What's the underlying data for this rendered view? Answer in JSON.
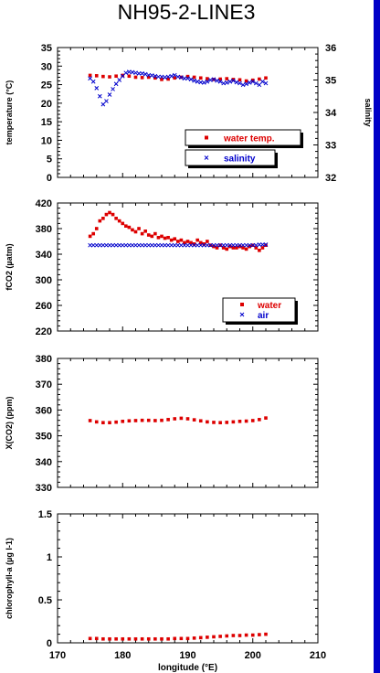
{
  "title": "NH95-2-LINE3",
  "colors": {
    "red": "#dd0000",
    "blue": "#0000cc",
    "edge": "#0000c8"
  },
  "x_axis": {
    "label": "longitude (°E)",
    "ticks": [
      "170",
      "180",
      "190",
      "200",
      "210"
    ],
    "xlim": [
      170,
      210
    ]
  },
  "chart_data": [
    {
      "type": "scatter",
      "ylabel": "temperature (°C)",
      "ylabel_right": "salinity",
      "ylim": [
        0,
        35
      ],
      "yticks": [
        "0",
        "5",
        "10",
        "15",
        "20",
        "25",
        "30",
        "35"
      ],
      "ylim_right": [
        32,
        36
      ],
      "yticks_right": [
        "32",
        "33",
        "34",
        "35",
        "36"
      ],
      "legend": [
        {
          "label": "water temp.",
          "marker": "square",
          "color": "#dd0000"
        },
        {
          "label": "salinity",
          "marker": "x",
          "color": "#0000cc"
        }
      ],
      "series": [
        {
          "name": "water temp.",
          "axis": "left",
          "marker": "square",
          "color": "#dd0000",
          "x": [
            175,
            176,
            177,
            178,
            179,
            180,
            181,
            182,
            183,
            184,
            185,
            186,
            187,
            188,
            189,
            190,
            191,
            192,
            193,
            194,
            195,
            196,
            197,
            198,
            199,
            200,
            201,
            202
          ],
          "y": [
            27.5,
            27.4,
            27.2,
            27.1,
            27.3,
            27.5,
            27.3,
            27.0,
            26.9,
            27.0,
            26.8,
            26.4,
            26.5,
            26.8,
            27.0,
            27.2,
            27.0,
            26.8,
            26.6,
            26.4,
            26.5,
            26.6,
            26.4,
            26.3,
            26.0,
            26.2,
            26.5,
            26.8
          ]
        },
        {
          "name": "salinity",
          "axis": "right",
          "marker": "x",
          "color": "#0000cc",
          "x": [
            175,
            175.5,
            176,
            176.5,
            177,
            177.5,
            178,
            178.5,
            179,
            179.5,
            180,
            180.5,
            181,
            181.5,
            182,
            182.5,
            183,
            183.5,
            184,
            184.5,
            185,
            185.5,
            186,
            186.5,
            187,
            187.5,
            188,
            188.5,
            189,
            189.5,
            190,
            190.5,
            191,
            191.5,
            192,
            192.5,
            193,
            193.5,
            194,
            194.5,
            195,
            195.5,
            196,
            196.5,
            197,
            197.5,
            198,
            198.5,
            199,
            199.5,
            200,
            200.5,
            201,
            201.5,
            202
          ],
          "y": [
            35.05,
            34.95,
            34.75,
            34.5,
            34.25,
            34.35,
            34.55,
            34.72,
            34.88,
            35.0,
            35.12,
            35.22,
            35.25,
            35.24,
            35.22,
            35.2,
            35.2,
            35.18,
            35.15,
            35.14,
            35.12,
            35.1,
            35.1,
            35.08,
            35.1,
            35.12,
            35.15,
            35.1,
            35.08,
            35.05,
            35.05,
            35.02,
            34.98,
            34.95,
            34.93,
            34.92,
            34.95,
            35.0,
            35.02,
            34.98,
            34.95,
            34.9,
            34.92,
            34.95,
            34.98,
            34.93,
            34.9,
            34.85,
            34.88,
            34.92,
            34.95,
            34.9,
            34.85,
            34.95,
            34.9
          ]
        }
      ]
    },
    {
      "type": "scatter",
      "ylabel": "fCO2 (µatm)",
      "ylim": [
        220,
        420
      ],
      "yticks": [
        "220",
        "260",
        "300",
        "340",
        "380",
        "420"
      ],
      "legend": [
        {
          "label": "water",
          "marker": "square",
          "color": "#dd0000"
        },
        {
          "label": "air",
          "marker": "x",
          "color": "#0000cc"
        }
      ],
      "series": [
        {
          "name": "water",
          "marker": "square",
          "color": "#dd0000",
          "x": [
            175,
            175.5,
            176,
            176.5,
            177,
            177.5,
            178,
            178.5,
            179,
            179.5,
            180,
            180.5,
            181,
            181.5,
            182,
            182.5,
            183,
            183.5,
            184,
            184.5,
            185,
            185.5,
            186,
            186.5,
            187,
            187.5,
            188,
            188.5,
            189,
            189.5,
            190,
            190.5,
            191,
            191.5,
            192,
            192.5,
            193,
            193.5,
            194,
            194.5,
            195,
            195.5,
            196,
            196.5,
            197,
            197.5,
            198,
            198.5,
            199,
            199.5,
            200,
            200.5,
            201,
            201.5,
            202
          ],
          "y": [
            368,
            372,
            380,
            392,
            396,
            402,
            405,
            402,
            396,
            392,
            388,
            384,
            382,
            378,
            375,
            380,
            372,
            376,
            370,
            368,
            372,
            366,
            368,
            365,
            366,
            362,
            364,
            360,
            362,
            358,
            360,
            358,
            356,
            362,
            358,
            356,
            360,
            354,
            352,
            350,
            354,
            350,
            348,
            352,
            350,
            350,
            352,
            350,
            348,
            352,
            354,
            350,
            346,
            350,
            354
          ]
        },
        {
          "name": "air",
          "marker": "x",
          "color": "#0000cc",
          "x": [
            175,
            175.5,
            176,
            176.5,
            177,
            177.5,
            178,
            178.5,
            179,
            179.5,
            180,
            180.5,
            181,
            181.5,
            182,
            182.5,
            183,
            183.5,
            184,
            184.5,
            185,
            185.5,
            186,
            186.5,
            187,
            187.5,
            188,
            188.5,
            189,
            189.5,
            190,
            190.5,
            191,
            191.5,
            192,
            192.5,
            193,
            193.5,
            194,
            194.5,
            195,
            195.5,
            196,
            196.5,
            197,
            197.5,
            198,
            198.5,
            199,
            199.5,
            200,
            200.5,
            201,
            201.5,
            202
          ],
          "y": [
            354,
            354,
            354,
            354,
            354,
            354,
            354,
            354,
            354,
            354,
            354,
            354,
            354,
            354,
            354,
            354,
            354,
            354,
            354,
            354,
            354,
            354,
            354,
            354,
            354,
            354,
            354,
            354,
            354,
            354,
            354,
            354,
            354,
            354,
            354,
            354,
            354,
            354,
            354,
            354,
            354,
            354,
            354,
            354,
            354,
            354,
            354,
            354,
            354,
            354,
            354,
            354,
            355,
            355,
            355
          ]
        }
      ]
    },
    {
      "type": "scatter",
      "ylabel": "X(CO2) (ppm)",
      "ylim": [
        330,
        380
      ],
      "yticks": [
        "330",
        "340",
        "350",
        "360",
        "370",
        "380"
      ],
      "series": [
        {
          "name": "",
          "marker": "square",
          "color": "#dd0000",
          "x": [
            175,
            176,
            177,
            178,
            179,
            180,
            181,
            182,
            183,
            184,
            185,
            186,
            187,
            188,
            189,
            190,
            191,
            192,
            193,
            194,
            195,
            196,
            197,
            198,
            199,
            200,
            201,
            202
          ],
          "y": [
            355.9,
            355.4,
            355.1,
            355.1,
            355.3,
            355.6,
            355.8,
            355.9,
            356.0,
            356.0,
            355.9,
            356.0,
            356.3,
            356.6,
            356.8,
            356.6,
            356.2,
            355.8,
            355.4,
            355.2,
            355.1,
            355.2,
            355.4,
            355.6,
            355.7,
            355.9,
            356.3,
            356.9
          ]
        }
      ]
    },
    {
      "type": "scatter",
      "ylabel": "chlorophyll-a (µg l-1)",
      "ylim": [
        0,
        1.5
      ],
      "yticks": [
        "0",
        "0.5",
        "1",
        "1.5"
      ],
      "series": [
        {
          "name": "",
          "marker": "square",
          "color": "#dd0000",
          "x": [
            175,
            176,
            177,
            178,
            179,
            180,
            181,
            182,
            183,
            184,
            185,
            186,
            187,
            188,
            189,
            190,
            191,
            192,
            193,
            194,
            195,
            196,
            197,
            198,
            199,
            200,
            201,
            202
          ],
          "y": [
            0.05,
            0.05,
            0.045,
            0.045,
            0.045,
            0.045,
            0.045,
            0.045,
            0.045,
            0.045,
            0.045,
            0.045,
            0.045,
            0.05,
            0.05,
            0.05,
            0.055,
            0.06,
            0.065,
            0.07,
            0.075,
            0.08,
            0.085,
            0.085,
            0.09,
            0.09,
            0.095,
            0.1
          ]
        }
      ]
    }
  ]
}
